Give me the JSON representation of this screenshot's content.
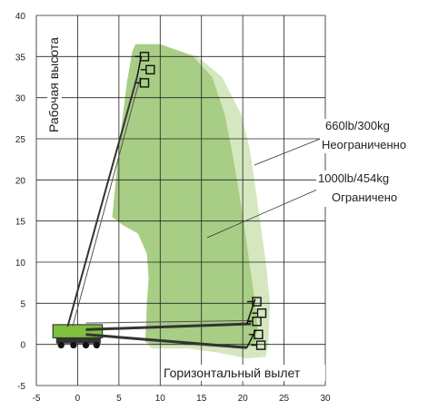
{
  "chart_data": {
    "type": "area",
    "title": "",
    "xlabel": "Горизонтальный вылет",
    "ylabel": "Рабочая высота",
    "xlim": [
      -5,
      30
    ],
    "ylim": [
      -5,
      40
    ],
    "x_ticks": [
      -5,
      0,
      5,
      10,
      15,
      20,
      25,
      30
    ],
    "y_ticks": [
      -5,
      0,
      5,
      10,
      15,
      20,
      25,
      30,
      35,
      40
    ],
    "grid": true,
    "colors": {
      "outer_zone": "#d5e7bf",
      "inner_zone": "#a8cd85",
      "grid": "#222222"
    },
    "series": [
      {
        "name": "660lb/300kg Неограниченно",
        "annotation_line1": "660lb/300kg",
        "annotation_line2": "Неограниченно",
        "polygon": [
          [
            7,
            36.5
          ],
          [
            10,
            36.5
          ],
          [
            14.5,
            35
          ],
          [
            17.5,
            32.5
          ],
          [
            19.8,
            28
          ],
          [
            20.8,
            24
          ],
          [
            21.4,
            20
          ],
          [
            22.1,
            15
          ],
          [
            22.8,
            10
          ],
          [
            23.3,
            5
          ],
          [
            23.1,
            0
          ],
          [
            22.8,
            -1.5
          ],
          [
            20.5,
            -1.7
          ],
          [
            17,
            -1
          ],
          [
            13.5,
            -0.5
          ],
          [
            9,
            -0.5
          ],
          [
            8.2,
            0.3
          ],
          [
            8.3,
            2.5
          ],
          [
            8.4,
            5
          ],
          [
            8.6,
            8
          ],
          [
            8.4,
            11
          ],
          [
            7.3,
            13.5
          ],
          [
            5.5,
            14.5
          ],
          [
            4.2,
            15.5
          ],
          [
            5,
            24
          ],
          [
            6,
            32
          ],
          [
            6.6,
            35.5
          ]
        ]
      },
      {
        "name": "1000lb/454kg Ограничено",
        "annotation_line1": "1000lb/454kg",
        "annotation_line2": "Ограничено",
        "polygon": [
          [
            7,
            36.5
          ],
          [
            10,
            36.5
          ],
          [
            14,
            35
          ],
          [
            16.3,
            32.5
          ],
          [
            17.8,
            28
          ],
          [
            18.6,
            24
          ],
          [
            19.3,
            20
          ],
          [
            20.1,
            15
          ],
          [
            20.8,
            10
          ],
          [
            21.5,
            5
          ],
          [
            21.8,
            2
          ],
          [
            21.5,
            0
          ],
          [
            20,
            -0.5
          ],
          [
            16,
            -0.3
          ],
          [
            12,
            0
          ],
          [
            9,
            0
          ],
          [
            8.2,
            0.3
          ],
          [
            8.3,
            2.5
          ],
          [
            8.4,
            5
          ],
          [
            8.6,
            8
          ],
          [
            8.4,
            11
          ],
          [
            7.3,
            13.5
          ],
          [
            5.5,
            14.5
          ],
          [
            4.2,
            15.5
          ],
          [
            5,
            24
          ],
          [
            6,
            32
          ],
          [
            6.6,
            35.5
          ]
        ]
      }
    ]
  }
}
